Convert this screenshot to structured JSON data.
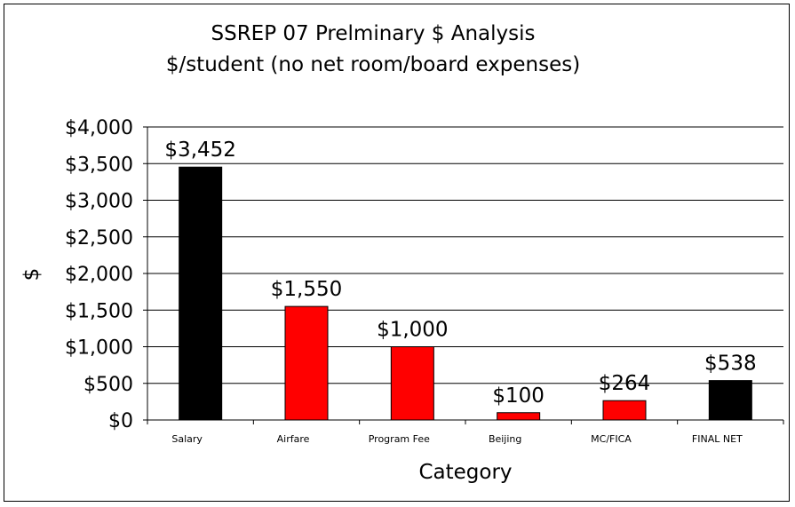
{
  "chart_data": {
    "type": "bar",
    "title": "SSREP 07 Prelminary $ Analysis",
    "subtitle": "$/student (no net room/board expenses)",
    "xlabel": "Category",
    "ylabel": "$",
    "ylim": [
      0,
      4000
    ],
    "yticks": [
      0,
      500,
      1000,
      1500,
      2000,
      2500,
      3000,
      3500,
      4000
    ],
    "ytick_labels": [
      "$0",
      "$500",
      "$1,000",
      "$1,500",
      "$2,000",
      "$2,500",
      "$3,000",
      "$3,500",
      "$4,000"
    ],
    "grid": true,
    "legend": "none",
    "categories": [
      "Salary",
      "Airfare",
      "Program Fee",
      "Beijing",
      "MC/FICA",
      "FINAL NET"
    ],
    "values": [
      3452,
      1550,
      1000,
      100,
      264,
      538
    ],
    "data_labels": [
      "$3,452",
      "$1,550",
      "$1,000",
      "$100",
      "$264",
      "$538"
    ],
    "colors": [
      "#000000",
      "#ff0000",
      "#ff0000",
      "#ff0000",
      "#ff0000",
      "#000000"
    ]
  }
}
